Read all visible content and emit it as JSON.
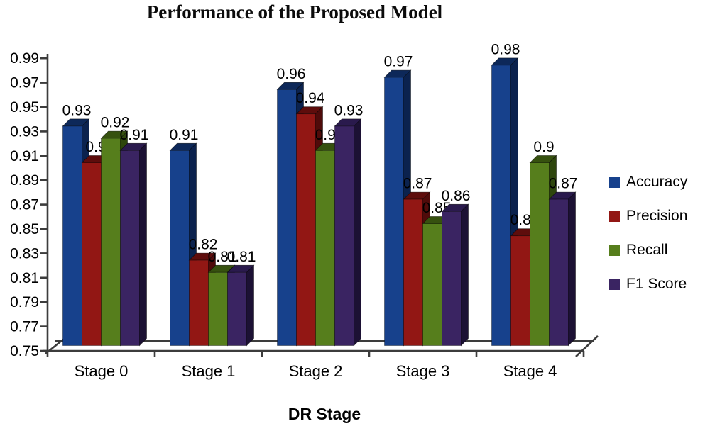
{
  "title": "Performance of the Proposed Model",
  "chart_data": {
    "type": "bar",
    "effect": "3d-clustered",
    "title": "Performance of the Proposed Model",
    "xlabel": "DR Stage",
    "ylabel": "",
    "categories": [
      "Stage 0",
      "Stage 1",
      "Stage 2",
      "Stage 3",
      "Stage 4"
    ],
    "series": [
      {
        "name": "Accuracy",
        "values": [
          0.93,
          0.91,
          0.96,
          0.97,
          0.98
        ],
        "color": "#17418C",
        "top_color": "#0D2859",
        "side_color": "#0B224E"
      },
      {
        "name": "Precision",
        "values": [
          0.9,
          0.82,
          0.94,
          0.87,
          0.84
        ],
        "color": "#921714",
        "top_color": "#5E0D0C",
        "side_color": "#4F0B0A"
      },
      {
        "name": "Recall",
        "values": [
          0.92,
          0.81,
          0.91,
          0.85,
          0.9
        ],
        "color": "#567E1C",
        "top_color": "#36510F",
        "side_color": "#2E460D"
      },
      {
        "name": "F1 Score",
        "values": [
          0.91,
          0.81,
          0.93,
          0.86,
          0.87
        ],
        "color": "#3A2462",
        "top_color": "#2A1A4D",
        "side_color": "#1C1134"
      }
    ],
    "data_labels_shown": true,
    "ylim": [
      0.75,
      0.99
    ],
    "ytick_step": 0.02,
    "yticks": [
      "0.75",
      "0.77",
      "0.79",
      "0.81",
      "0.83",
      "0.85",
      "0.87",
      "0.89",
      "0.91",
      "0.93",
      "0.95",
      "0.97",
      "0.99"
    ],
    "legend_position": "right",
    "grid": false,
    "background": "#FFFFFF",
    "axis_color": "#3C3C3C",
    "text_color": "#000000"
  }
}
